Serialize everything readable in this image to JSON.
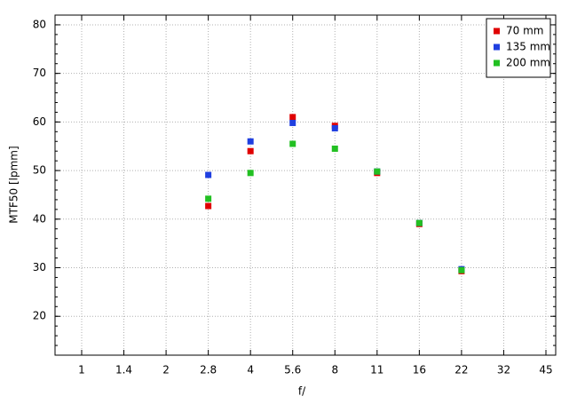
{
  "chart_data": {
    "type": "scatter",
    "x_label": "f/",
    "y_label": "MTF50 [lpmm]",
    "categories": [
      "1",
      "1.4",
      "2",
      "2.8",
      "4",
      "5.6",
      "8",
      "11",
      "16",
      "22",
      "32",
      "45"
    ],
    "series": [
      {
        "name": "70 mm",
        "color": "#e00000",
        "values": [
          null,
          null,
          null,
          42.7,
          54,
          61,
          59.2,
          49.5,
          39,
          29.3,
          null,
          null
        ]
      },
      {
        "name": "135 mm",
        "color": "#1f3fe0",
        "values": [
          null,
          null,
          null,
          49.1,
          56,
          59.8,
          58.7,
          49.8,
          39.2,
          29.7,
          null,
          null
        ]
      },
      {
        "name": "200 mm",
        "color": "#22c022",
        "values": [
          null,
          null,
          null,
          44.2,
          49.5,
          55.5,
          54.5,
          49.8,
          39.2,
          29.5,
          null,
          null
        ]
      }
    ],
    "ylim": [
      12,
      82
    ],
    "yticks": [
      20,
      30,
      40,
      50,
      60,
      70,
      80
    ],
    "grid": true,
    "legend": "top-right"
  }
}
